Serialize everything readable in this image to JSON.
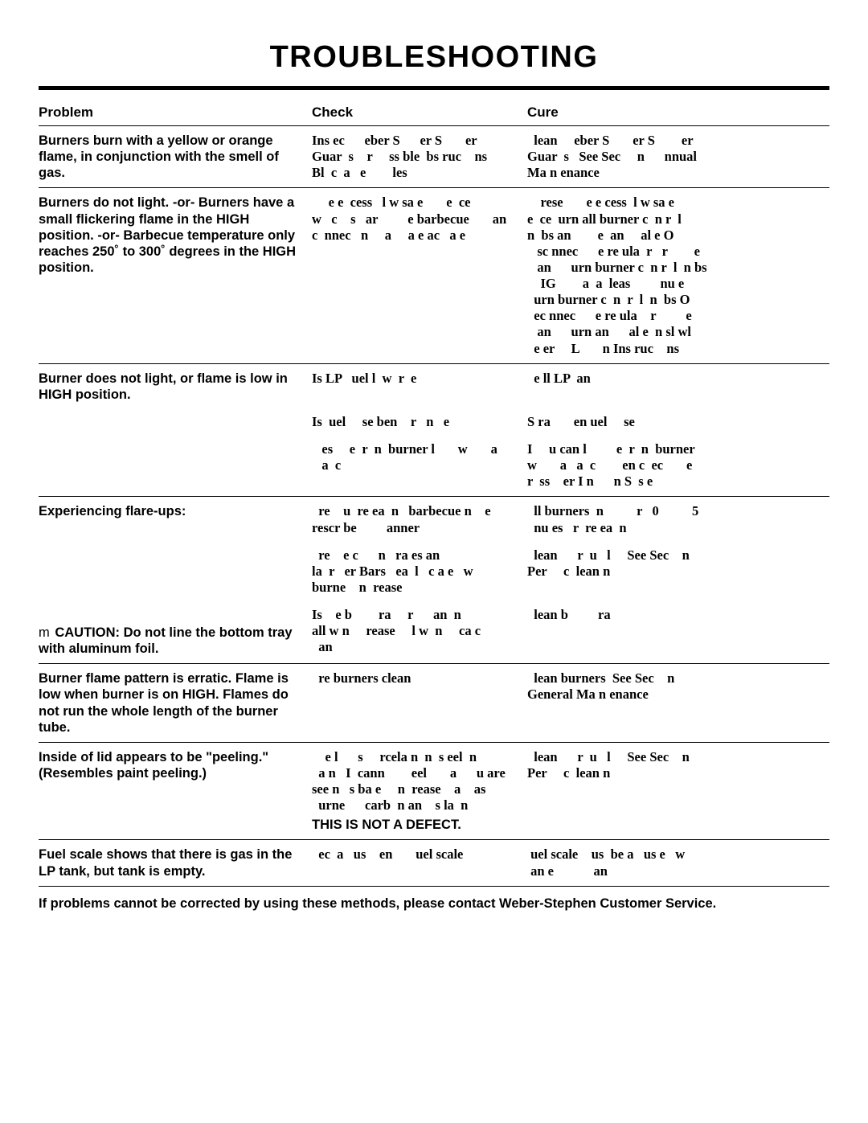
{
  "title": "TROUBLESHOOTING",
  "columns": {
    "problem": "Problem",
    "check": "Check",
    "cure": "Cure"
  },
  "groups": [
    {
      "rows": [
        {
          "problem": "Burners burn with a yellow or orange flame, in conjunction with the smell of gas.",
          "check": "Ins ec      eber S      er S       er\nGuar  s    r     ss ble  bs ruc    ns\nBl  c  a   e        les",
          "cure": "  lean     eber S       er S        er\nGuar  s   See Sec     n      nnual\nMa n enance"
        }
      ]
    },
    {
      "rows": [
        {
          "problem": "Burners do not light. -or-\nBurners have a small flickering flame in the HIGH position. -or-\nBarbecue temperature only reaches 250˚ to 300˚ degrees in the HIGH position.",
          "check": "     e e  cess   l w sa e       e  ce\nw   c    s   ar         e barbecue       an\nc  nnec   n     a     a e ac   a e",
          "cure": "    rese       e e cess  l w sa e\ne  ce  urn all burner c  n r  l\nn  bs an        e  an     al e O\n   sc nnec      e re ula  r   r        e\n   an      urn burner c  n r  l  n bs\n    IG        a  a  leas         nu e\n  urn burner c  n  r  l  n  bs O\n  ec nnec      e re ula    r         e\n   an      urn an      al e  n sl wl\n  e er     L       n Ins ruc    ns"
        }
      ]
    },
    {
      "rows": [
        {
          "problem": "Burner does not light, or flame is low in HIGH position.",
          "check": "Is LP   uel l  w  r  e",
          "cure": "  e ll LP  an"
        },
        {
          "problem": "",
          "check": "Is  uel     se ben    r   n   e",
          "cure": "S ra       en uel     se"
        },
        {
          "problem": "",
          "check": "   es     e  r  n  burner l       w       a\n   a  c",
          "cure": "I     u can l         e  r  n  burner\nw       a   a  c        en c  ec       e\nr  ss    er I n      n S  s e"
        }
      ]
    },
    {
      "rows": [
        {
          "problem": "Experiencing flare-ups:",
          "check": "  re    u  re ea  n   barbecue n    e\nrescr be         anner",
          "cure": "  ll burners  n          r   0          5\n  nu es   r  re ea  n"
        },
        {
          "problem": "",
          "check": "  re    e c      n   ra es an\nla  r   er Bars   ea  l   c a e   w\nburne    n  rease",
          "cure": "  lean      r  u   l     See Sec    n\nPer     c  lean n"
        },
        {
          "problem_html": "caution",
          "caution": "CAUTION: Do not line the bottom tray with aluminum foil.",
          "check": "Is    e b        ra     r      an  n\nall w n     rease     l w  n     ca c\n  an",
          "cure": "  lean b         ra"
        }
      ]
    },
    {
      "rows": [
        {
          "problem": "Burner flame pattern is erratic. Flame is low when burner is on HIGH. Flames do not run the whole length of the burner tube.",
          "check": "  re burners clean",
          "cure": "  lean burners  See Sec    n\nGeneral Ma n enance"
        }
      ]
    },
    {
      "rows": [
        {
          "problem": "Inside of lid appears to be \"peeling.\" (Resembles paint peeling.)",
          "check": "    e l      s     rcela n  n  s eel  n\n  a n   I  cann        eel       a      u are\nsee n   s ba e     n  rease    a    as\n  urne      carb  n an    s la  n",
          "check_extra": "THIS IS NOT A DEFECT.",
          "cure": "  lean      r  u   l     See Sec    n\nPer     c  lean n"
        }
      ]
    },
    {
      "rows": [
        {
          "problem": "Fuel scale shows that there is gas in the LP tank, but tank is empty.",
          "check": "  ec  a   us    en       uel scale",
          "cure": " uel scale    us  be a   us e   w\n an e            an"
        }
      ]
    }
  ],
  "footer": "If problems cannot be corrected by using these methods, please contact Weber-Stephen Customer Service."
}
